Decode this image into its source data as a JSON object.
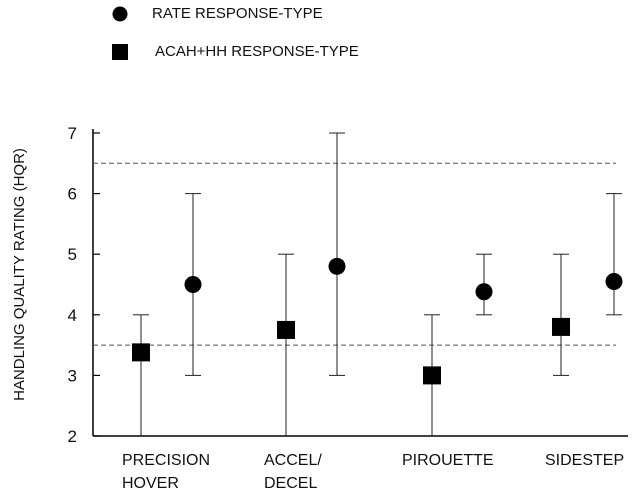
{
  "chart_data": {
    "type": "scatter",
    "ylabel": "HANDLING QUALITY RATING (HQR)",
    "xlabel": "",
    "ylim": [
      2,
      7
    ],
    "yticks": [
      2,
      3,
      4,
      5,
      6,
      7
    ],
    "categories": [
      [
        "PRECISION",
        "HOVER"
      ],
      [
        "ACCEL/",
        "DECEL"
      ],
      [
        "PIROUETTE"
      ],
      [
        "SIDESTEP"
      ]
    ],
    "reference_lines": [
      {
        "y": 6.5,
        "style": "dashed"
      },
      {
        "y": 3.5,
        "style": "dashed"
      }
    ],
    "grid": false,
    "legend_position": "top-left",
    "series": [
      {
        "name": "ACAH+HH RESPONSE-TYPE",
        "marker": "square",
        "points": [
          {
            "mean": 3.38,
            "low": 2,
            "high": 4
          },
          {
            "mean": 3.75,
            "low": 2,
            "high": 5
          },
          {
            "mean": 3.0,
            "low": 2,
            "high": 4
          },
          {
            "mean": 3.8,
            "low": 3,
            "high": 5
          }
        ]
      },
      {
        "name": "RATE RESPONSE-TYPE",
        "marker": "circle",
        "points": [
          {
            "mean": 4.5,
            "low": 3,
            "high": 6
          },
          {
            "mean": 4.8,
            "low": 3,
            "high": 7
          },
          {
            "mean": 4.38,
            "low": 4,
            "high": 5
          },
          {
            "mean": 4.55,
            "low": 4,
            "high": 6
          }
        ]
      }
    ]
  }
}
